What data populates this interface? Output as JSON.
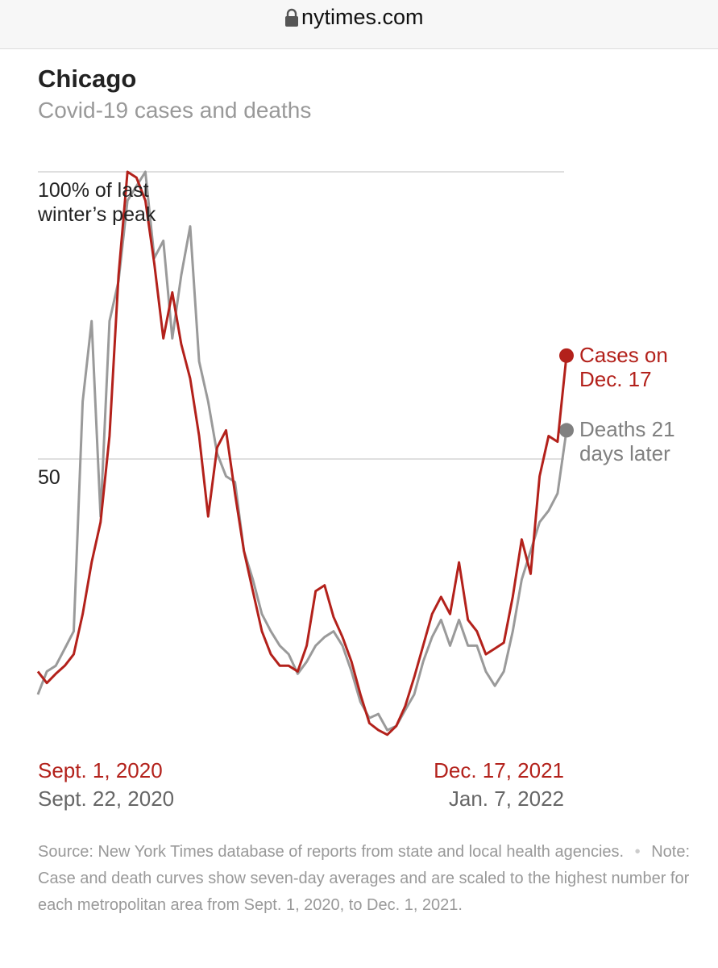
{
  "site": "nytimes.com",
  "chart_data": {
    "type": "line",
    "title": "Chicago",
    "subtitle": "Covid-19 cases and deaths",
    "ylim": [
      0,
      100
    ],
    "yticks": [
      50,
      {
        "value": 100,
        "label": "100% of last winter’s peak"
      }
    ],
    "grid": true,
    "x_labels": [
      {
        "color": "#b3211b",
        "start": "Sept. 1, 2020",
        "end": "Dec. 17, 2021"
      },
      {
        "color": "#666666",
        "start": "Sept. 22, 2020",
        "end": "Jan. 7, 2022"
      }
    ],
    "series": [
      {
        "name": "Deaths 21 days later",
        "color": "#9a9a9a",
        "end_dot_color": "#808080",
        "values": [
          9,
          13,
          14,
          17,
          20,
          60,
          74,
          40,
          74,
          81,
          95,
          97.5,
          100,
          85,
          88,
          71,
          82,
          90.5,
          67,
          60,
          51,
          47,
          46,
          34,
          29,
          23,
          20,
          17.5,
          16,
          12.6,
          14.7,
          17.5,
          19,
          20,
          17.5,
          13,
          7.7,
          4.9,
          5.6,
          2.8,
          3.5,
          6.3,
          9,
          14.7,
          19,
          22,
          17.5,
          22,
          17.5,
          17.5,
          13,
          10.5,
          13,
          20,
          29,
          34,
          39,
          41,
          44,
          55
        ]
      },
      {
        "name": "Cases on Dec. 17",
        "color": "#b3211b",
        "end_dot_color": "#b3211b",
        "values": [
          13,
          11,
          12.6,
          14,
          16,
          23,
          32,
          39,
          54,
          82,
          100,
          99,
          95,
          84,
          71,
          79,
          70,
          64,
          54,
          40,
          52,
          55,
          44,
          34,
          27,
          20,
          16,
          14,
          14,
          13,
          17.5,
          27,
          28,
          22.5,
          19,
          14.7,
          9,
          4,
          2.8,
          2,
          3.5,
          7,
          12,
          17.5,
          23,
          26,
          23,
          32,
          22,
          20,
          16,
          17,
          18,
          26,
          36,
          30,
          47,
          54,
          53,
          68
        ]
      }
    ],
    "source": "Source: New York Times database of reports from state and local health agencies.",
    "note": "Note: Case and death curves show seven-day averages and are scaled to the highest number for each metropolitan area from Sept. 1, 2020, to Dec. 1, 2021."
  }
}
